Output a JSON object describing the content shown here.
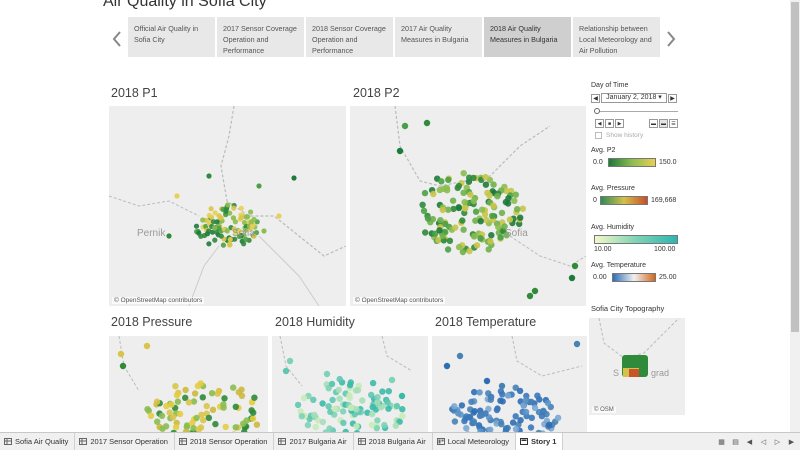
{
  "story": {
    "title": "Air Quality in Sofia City",
    "points": [
      "Official Air Quality in Sofia City",
      "2017 Sensor Coverage Operation and Performance",
      "2018 Sensor Coverage Operation and Performance",
      "2017 Air Quality Measures in Bulgaria",
      "2018 Air Quality Measures in Bulgaria",
      "Relationship between Local Meteorology and Air Pollution"
    ],
    "active_point": 4
  },
  "sheets": {
    "p1": "2018 P1",
    "p2": "2018 P2",
    "pressure": "2018 Pressure",
    "humidity": "2018 Humidity",
    "temperature": "2018 Temperature"
  },
  "map": {
    "attribution": "© OpenStreetMap contributors",
    "attribution_short": "© OSM",
    "label_pernik": "Pernik",
    "label_sofia": "Sofia",
    "label_sofia_partial": "S",
    "label_sofia_partial2": "ofia",
    "label_grad": "grad"
  },
  "controls": {
    "day_label": "Day of Time",
    "date_value": "January 2, 2018",
    "show_history": "Show history"
  },
  "legends": {
    "p2": {
      "title": "Avg. P2",
      "min": "0.0",
      "max": "150.0",
      "colors": [
        "#1e7a3a",
        "#8bbd4f",
        "#e8cf55"
      ]
    },
    "pressure": {
      "title": "Avg. Pressure",
      "min": "0",
      "max": "169,668",
      "colors": [
        "#2e8b57",
        "#d4c14a",
        "#c74d2a"
      ]
    },
    "humidity": {
      "title": "Avg. Humidity",
      "min": "10.00",
      "max": "100.00",
      "colors": [
        "#f4f7c8",
        "#7ed3b6",
        "#2eb6b0"
      ]
    },
    "temperature": {
      "title": "Avg. Temperature",
      "min": "0.00",
      "max": "25.00",
      "colors": [
        "#2f6db5",
        "#f0f0f0",
        "#d2691e"
      ]
    }
  },
  "topography": {
    "title": "Sofia City Topography"
  },
  "tabs": [
    {
      "label": "Sofia Air Quality",
      "active": false
    },
    {
      "label": "2017 Sensor Operation",
      "active": false
    },
    {
      "label": "2018 Sensor Operation",
      "active": false
    },
    {
      "label": "2017 Bulgaria Air",
      "active": false
    },
    {
      "label": "2018 Bulgaria Air",
      "active": false
    },
    {
      "label": "Local Meteorology",
      "active": false
    },
    {
      "label": "Story 1",
      "active": true
    }
  ],
  "icons": {
    "nav_prev": "chevron-left-icon",
    "nav_next": "chevron-right-icon",
    "tab_sheet": "worksheet-icon",
    "tab_story": "story-icon"
  }
}
